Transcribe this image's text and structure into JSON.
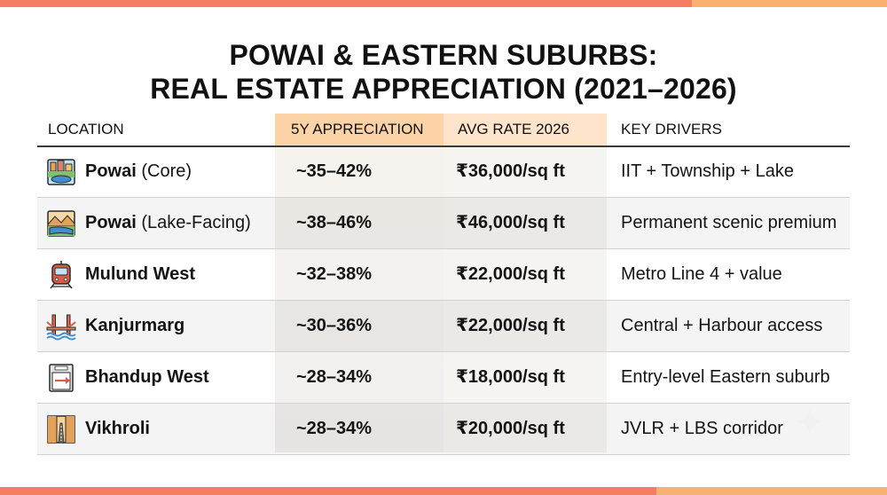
{
  "title": {
    "line1": "POWAI & EASTERN SUBURBS:",
    "line2": "REAL ESTATE APPRECIATION (2021–2026)"
  },
  "headers": {
    "location": "LOCATION",
    "appreciation": "5Y APPRECIATION",
    "rate": "AVG RATE 2026",
    "drivers": "KEY DRIVERS"
  },
  "colors": {
    "accent_coral": "#f47d62",
    "accent_peach": "#f9b170",
    "header_appreciation": "#fcd3a7",
    "header_rate": "#fde4cb"
  },
  "rows": [
    {
      "icon": "township-lake-icon",
      "name": "Powai",
      "suffix": " (Core)",
      "appreciation": "~35–42%",
      "rate": "₹36,000/sq ft",
      "drivers": "IIT + Township + Lake"
    },
    {
      "icon": "lake-landscape-icon",
      "name": "Powai",
      "suffix": " (Lake-Facing)",
      "appreciation": "~38–46%",
      "rate": "₹46,000/sq ft",
      "drivers": "Permanent scenic premium"
    },
    {
      "icon": "metro-train-icon",
      "name": "Mulund West",
      "suffix": "",
      "appreciation": "~32–38%",
      "rate": "₹22,000/sq ft",
      "drivers": "Metro Line 4 + value"
    },
    {
      "icon": "bridge-icon",
      "name": "Kanjurmarg",
      "suffix": "",
      "appreciation": "~30–36%",
      "rate": "₹22,000/sq ft",
      "drivers": "Central + Harbour access"
    },
    {
      "icon": "entry-door-icon",
      "name": "Bhandup West",
      "suffix": "",
      "appreciation": "~28–34%",
      "rate": "₹18,000/sq ft",
      "drivers": "Entry-level Eastern suburb"
    },
    {
      "icon": "highway-corridor-icon",
      "name": "Vikhroli",
      "suffix": "",
      "appreciation": "~28–34%",
      "rate": "₹20,000/sq ft",
      "drivers": "JVLR + LBS corridor"
    }
  ]
}
